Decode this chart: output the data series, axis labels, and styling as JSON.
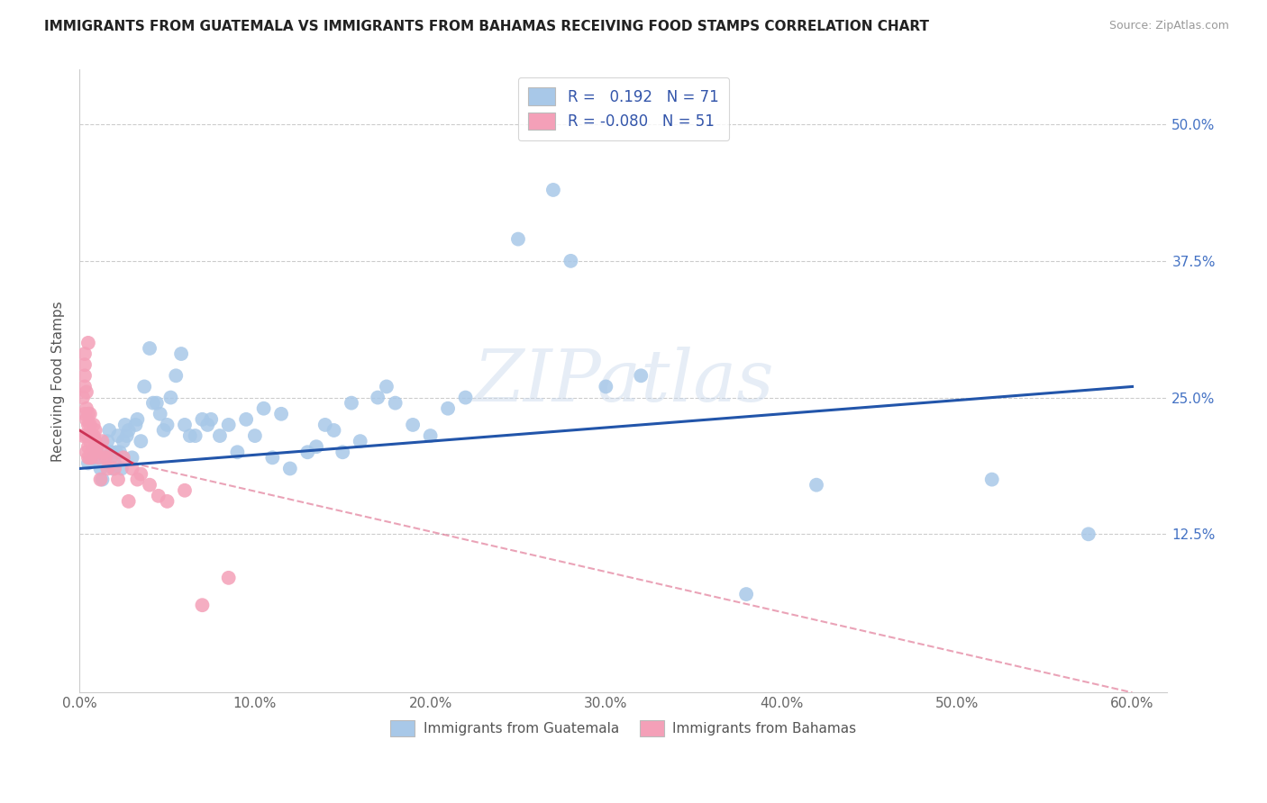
{
  "title": "IMMIGRANTS FROM GUATEMALA VS IMMIGRANTS FROM BAHAMAS RECEIVING FOOD STAMPS CORRELATION CHART",
  "source": "Source: ZipAtlas.com",
  "ylabel": "Receiving Food Stamps",
  "ytick_labels": [
    "50.0%",
    "37.5%",
    "25.0%",
    "12.5%"
  ],
  "ytick_values": [
    0.5,
    0.375,
    0.25,
    0.125
  ],
  "xtick_values": [
    0.0,
    0.1,
    0.2,
    0.3,
    0.4,
    0.5,
    0.6
  ],
  "xtick_labels": [
    "0.0%",
    "10.0%",
    "20.0%",
    "30.0%",
    "40.0%",
    "50.0%",
    "60.0%"
  ],
  "xlim": [
    0.0,
    0.62
  ],
  "ylim": [
    -0.02,
    0.55
  ],
  "legend_r_blue": "0.192",
  "legend_n_blue": "71",
  "legend_r_pink": "-0.080",
  "legend_n_pink": "51",
  "legend_label_blue": "Immigrants from Guatemala",
  "legend_label_pink": "Immigrants from Bahamas",
  "blue_color": "#a8c8e8",
  "pink_color": "#f4a0b8",
  "line_blue_color": "#2255aa",
  "line_pink_color": "#cc3355",
  "line_pink_dash_color": "#dd6688",
  "watermark": "ZIPatlas",
  "blue_x": [
    0.005,
    0.008,
    0.01,
    0.012,
    0.013,
    0.015,
    0.016,
    0.017,
    0.018,
    0.019,
    0.02,
    0.021,
    0.022,
    0.023,
    0.024,
    0.025,
    0.026,
    0.027,
    0.028,
    0.03,
    0.032,
    0.033,
    0.035,
    0.037,
    0.04,
    0.042,
    0.044,
    0.046,
    0.048,
    0.05,
    0.052,
    0.055,
    0.058,
    0.06,
    0.063,
    0.066,
    0.07,
    0.073,
    0.075,
    0.08,
    0.085,
    0.09,
    0.095,
    0.1,
    0.105,
    0.11,
    0.115,
    0.12,
    0.13,
    0.135,
    0.14,
    0.145,
    0.15,
    0.155,
    0.16,
    0.17,
    0.175,
    0.18,
    0.19,
    0.2,
    0.21,
    0.22,
    0.25,
    0.27,
    0.28,
    0.3,
    0.32,
    0.38,
    0.42,
    0.52,
    0.575
  ],
  "blue_y": [
    0.19,
    0.195,
    0.2,
    0.185,
    0.175,
    0.195,
    0.21,
    0.22,
    0.2,
    0.185,
    0.19,
    0.2,
    0.215,
    0.2,
    0.185,
    0.21,
    0.225,
    0.215,
    0.22,
    0.195,
    0.225,
    0.23,
    0.21,
    0.26,
    0.295,
    0.245,
    0.245,
    0.235,
    0.22,
    0.225,
    0.25,
    0.27,
    0.29,
    0.225,
    0.215,
    0.215,
    0.23,
    0.225,
    0.23,
    0.215,
    0.225,
    0.2,
    0.23,
    0.215,
    0.24,
    0.195,
    0.235,
    0.185,
    0.2,
    0.205,
    0.225,
    0.22,
    0.2,
    0.245,
    0.21,
    0.25,
    0.26,
    0.245,
    0.225,
    0.215,
    0.24,
    0.25,
    0.395,
    0.44,
    0.375,
    0.26,
    0.27,
    0.07,
    0.17,
    0.175,
    0.125
  ],
  "pink_x": [
    0.002,
    0.002,
    0.003,
    0.003,
    0.003,
    0.003,
    0.003,
    0.004,
    0.004,
    0.004,
    0.004,
    0.004,
    0.005,
    0.005,
    0.005,
    0.005,
    0.005,
    0.005,
    0.006,
    0.006,
    0.006,
    0.006,
    0.007,
    0.007,
    0.007,
    0.008,
    0.008,
    0.009,
    0.009,
    0.009,
    0.01,
    0.011,
    0.012,
    0.013,
    0.014,
    0.015,
    0.016,
    0.018,
    0.02,
    0.022,
    0.025,
    0.028,
    0.03,
    0.033,
    0.035,
    0.04,
    0.045,
    0.05,
    0.06,
    0.07,
    0.085
  ],
  "pink_y": [
    0.215,
    0.25,
    0.235,
    0.26,
    0.27,
    0.28,
    0.29,
    0.2,
    0.215,
    0.23,
    0.24,
    0.255,
    0.195,
    0.205,
    0.215,
    0.225,
    0.235,
    0.3,
    0.195,
    0.21,
    0.225,
    0.235,
    0.2,
    0.215,
    0.195,
    0.215,
    0.225,
    0.2,
    0.21,
    0.22,
    0.205,
    0.195,
    0.175,
    0.21,
    0.2,
    0.195,
    0.185,
    0.195,
    0.185,
    0.175,
    0.195,
    0.155,
    0.185,
    0.175,
    0.18,
    0.17,
    0.16,
    0.155,
    0.165,
    0.06,
    0.085
  ],
  "blue_line_x0": 0.0,
  "blue_line_x1": 0.6,
  "blue_line_y0": 0.185,
  "blue_line_y1": 0.26,
  "pink_line_solid_x0": 0.0,
  "pink_line_solid_x1": 0.03,
  "pink_line_solid_y0": 0.22,
  "pink_line_solid_y1": 0.19,
  "pink_line_dash_x0": 0.03,
  "pink_line_dash_x1": 0.6,
  "pink_line_dash_y0": 0.19,
  "pink_line_dash_y1": -0.02
}
